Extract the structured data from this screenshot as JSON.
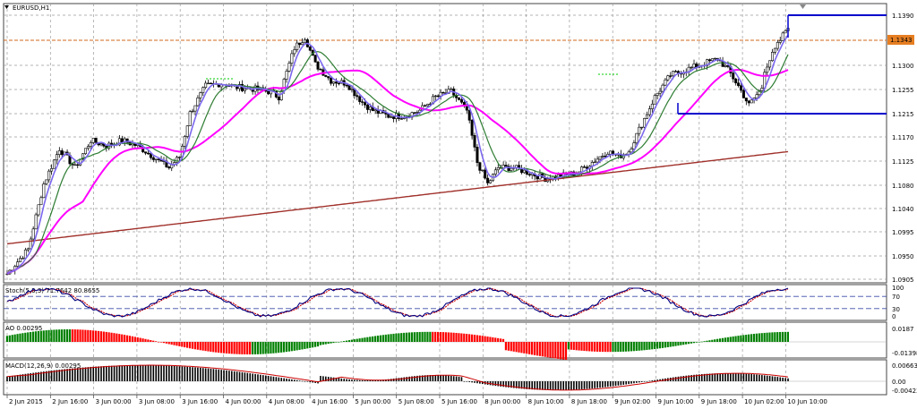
{
  "main": {
    "symbol_label": "EURUSD,H1",
    "price_ticks": [
      "1.1390",
      "1.1343",
      "1.1300",
      "1.1255",
      "1.1215",
      "1.1170",
      "1.1125",
      "1.1080",
      "1.1040",
      "1.0995",
      "1.0950",
      "1.0905"
    ],
    "current_price": "1.1343",
    "colors": {
      "up": "#2e8b57",
      "down": "#cc0000",
      "stoch_main": "#000080",
      "stoch_signal": "#cc0000",
      "ao_up": "#008000",
      "ao_down": "#ff0000",
      "macd_signal": "#cc0000"
    }
  },
  "stoch": {
    "label": "Stoch(5,3,3) 71.7642 80.8655",
    "ticks": [
      "100",
      "70",
      "30",
      "0"
    ]
  },
  "ao": {
    "label": "AO 0.00295",
    "ticks": [
      "0.0187",
      "-0.01398"
    ]
  },
  "macd": {
    "label": "MACD(12,26,9) 0.00295",
    "ticks": [
      "0.00663",
      "0.00",
      "-0.00423"
    ]
  },
  "xaxis": {
    "ticks": [
      "2 Jun 2015",
      "2 Jun 16:00",
      "3 Jun 00:00",
      "3 Jun 08:00",
      "3 Jun 16:00",
      "4 Jun 00:00",
      "4 Jun 08:00",
      "4 Jun 16:00",
      "5 Jun 00:00",
      "5 Jun 08:00",
      "5 Jun 16:00",
      "8 Jun 00:00",
      "8 Jun 10:00",
      "8 Jun 18:00",
      "9 Jun 02:00",
      "9 Jun 10:00",
      "9 Jun 18:00",
      "10 Jun 02:00",
      "10 Jun 10:00"
    ]
  }
}
